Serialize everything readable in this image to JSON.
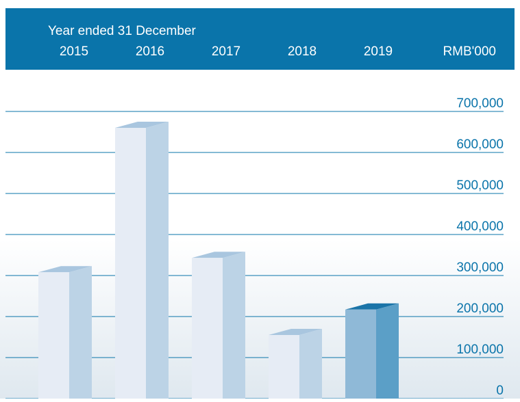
{
  "chart_data": {
    "type": "bar3d",
    "title": "Year ended 31 December",
    "y_label": "RMB'000",
    "categories": [
      "2015",
      "2016",
      "2017",
      "2018",
      "2019"
    ],
    "values": [
      308000,
      660000,
      343000,
      155000,
      217000
    ],
    "colors": [
      {
        "front": "#e6ecf5",
        "side": "#bcd3e6",
        "top": "#a9c6df"
      },
      {
        "front": "#e6ecf5",
        "side": "#bcd3e6",
        "top": "#a9c6df"
      },
      {
        "front": "#e6ecf5",
        "side": "#bcd3e6",
        "top": "#a9c6df"
      },
      {
        "front": "#e6ecf5",
        "side": "#bcd3e6",
        "top": "#a9c6df"
      },
      {
        "front": "#8fb9d7",
        "side": "#5b9fc7",
        "top": "#1a74a8"
      }
    ],
    "ylim": [
      0,
      700000
    ],
    "yticks": [
      0,
      {
        "value": 100000,
        "label": "100,000"
      },
      {
        "value": 200000,
        "label": "200,000"
      },
      {
        "value": 300000,
        "label": "300,000"
      },
      {
        "value": 400000,
        "label": "400,000"
      },
      {
        "value": 500000,
        "label": "500,000"
      },
      {
        "value": 600000,
        "label": "600,000"
      },
      {
        "value": 700000,
        "label": "700,000"
      }
    ],
    "grid": true,
    "grid_color": "#0a74aa",
    "header_color": "#0a74aa"
  }
}
